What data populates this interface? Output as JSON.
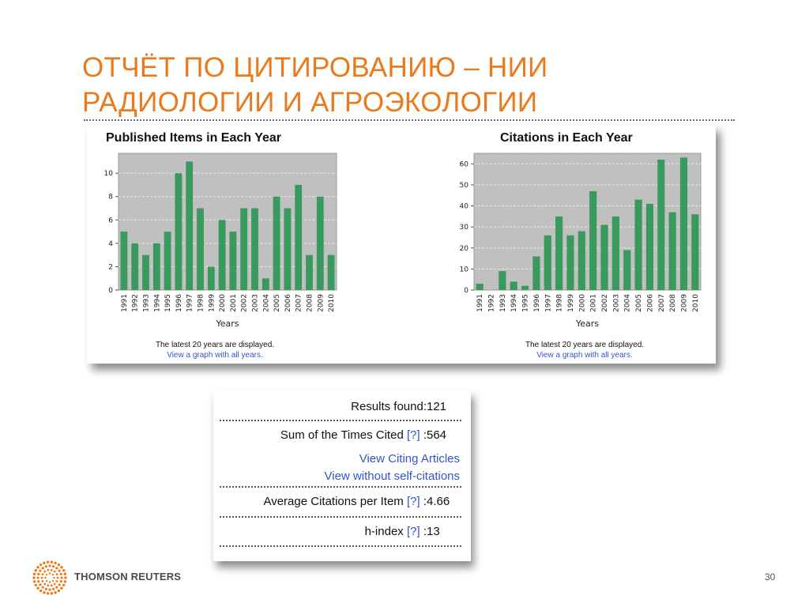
{
  "slide": {
    "title_line1": "ОТЧЁТ ПО ЦИТИРОВАНИЮ – НИИ",
    "title_line2": "РАДИОЛОГИИ И АГРОЭКОЛОГИИ",
    "page_number": "30",
    "brand": "THOMSON REUTERS",
    "accent_color": "#ea7a1c",
    "bar_color": "#3a9a5e",
    "plot_bg_color": "#c0c0c0",
    "link_color": "#3355cc"
  },
  "charts": {
    "published": {
      "note": "The latest 20 years are displayed.",
      "link": "View a graph with all years."
    },
    "citations": {
      "note": "The latest 20 years are displayed.",
      "link": "View a graph with all years."
    }
  },
  "chart_data": [
    {
      "type": "bar",
      "title": "Published Items in Each Year",
      "xlabel": "Years",
      "ylabel": "",
      "categories": [
        "1991",
        "1992",
        "1993",
        "1994",
        "1995",
        "1996",
        "1997",
        "1998",
        "1999",
        "2000",
        "2001",
        "2002",
        "2003",
        "2004",
        "2005",
        "2006",
        "2007",
        "2008",
        "2009",
        "2010"
      ],
      "values": [
        5,
        4,
        3,
        4,
        5,
        10,
        11,
        7,
        2,
        6,
        5,
        7,
        7,
        1,
        8,
        7,
        9,
        3,
        8,
        3
      ],
      "ylim": [
        0,
        11.7
      ],
      "yticks": [
        0,
        2,
        4,
        6,
        8,
        10
      ],
      "grid": true
    },
    {
      "type": "bar",
      "title": "Citations in Each Year",
      "xlabel": "Years",
      "ylabel": "",
      "categories": [
        "1991",
        "1992",
        "1993",
        "1994",
        "1995",
        "1996",
        "1997",
        "1998",
        "1999",
        "2000",
        "2001",
        "2002",
        "2003",
        "2004",
        "2005",
        "2006",
        "2007",
        "2008",
        "2009",
        "2010"
      ],
      "values": [
        3,
        0,
        9,
        4,
        2,
        16,
        26,
        35,
        26,
        28,
        47,
        31,
        35,
        19,
        43,
        41,
        62,
        37,
        63,
        36
      ],
      "ylim": [
        0,
        65
      ],
      "yticks": [
        0,
        10,
        20,
        30,
        40,
        50,
        60
      ],
      "grid": true
    }
  ],
  "stats": {
    "results_label": "Results found:",
    "results_value": "121",
    "sum_label": "Sum of the Times Cited",
    "sum_value": "564",
    "view_citing": "View Citing Articles",
    "view_without_self": "View without self-citations",
    "avg_label": "Average Citations per Item",
    "avg_value": "4.66",
    "hindex_label": "h-index",
    "hindex_value": "13",
    "help_marker": "[?]",
    "colon": ":"
  }
}
